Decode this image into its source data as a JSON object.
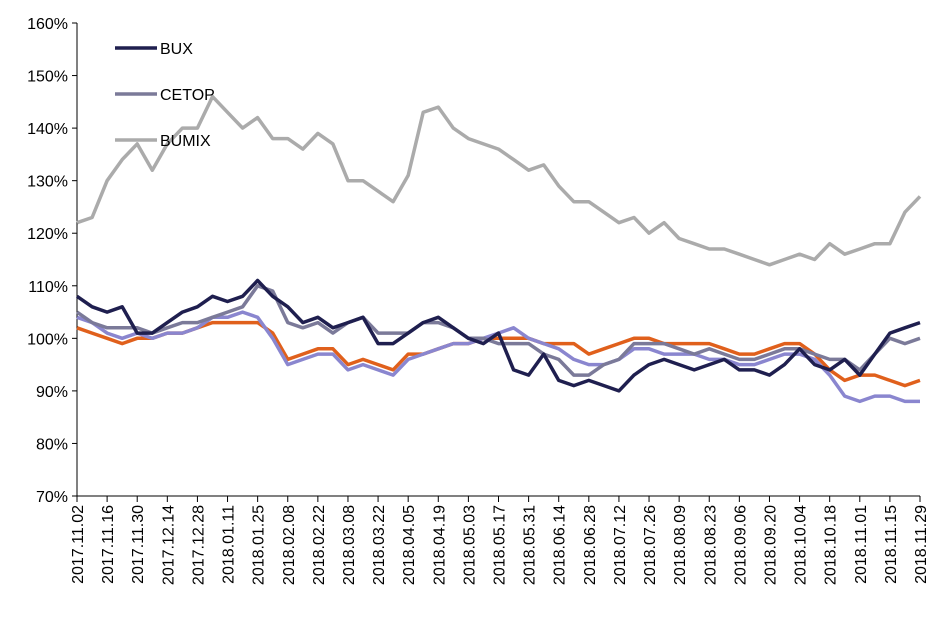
{
  "chart_data": {
    "type": "line",
    "x": [
      "2017.11.02",
      "2017.11.09",
      "2017.11.16",
      "2017.11.23",
      "2017.11.30",
      "2017.12.07",
      "2017.12.14",
      "2017.12.21",
      "2017.12.28",
      "2018.01.04",
      "2018.01.11",
      "2018.01.18",
      "2018.01.25",
      "2018.02.01",
      "2018.02.08",
      "2018.02.15",
      "2018.02.22",
      "2018.03.01",
      "2018.03.08",
      "2018.03.15",
      "2018.03.22",
      "2018.03.29",
      "2018.04.05",
      "2018.04.12",
      "2018.04.19",
      "2018.04.26",
      "2018.05.03",
      "2018.05.10",
      "2018.05.17",
      "2018.05.24",
      "2018.05.31",
      "2018.06.07",
      "2018.06.14",
      "2018.06.21",
      "2018.06.28",
      "2018.07.05",
      "2018.07.12",
      "2018.07.19",
      "2018.07.26",
      "2018.08.02",
      "2018.08.09",
      "2018.08.16",
      "2018.08.23",
      "2018.08.30",
      "2018.09.06",
      "2018.09.13",
      "2018.09.20",
      "2018.09.27",
      "2018.10.04",
      "2018.10.11",
      "2018.10.18",
      "2018.10.25",
      "2018.11.01",
      "2018.11.08",
      "2018.11.15",
      "2018.11.22",
      "2018.11.29"
    ],
    "series": [
      {
        "name": "BUMIX",
        "color": "#ababab",
        "values": [
          122,
          123,
          130,
          134,
          137,
          132,
          137,
          140,
          140,
          146,
          143,
          140,
          142,
          138,
          138,
          136,
          139,
          137,
          130,
          130,
          128,
          126,
          131,
          143,
          144,
          140,
          138,
          137,
          136,
          134,
          132,
          133,
          129,
          126,
          126,
          124,
          122,
          123,
          120,
          122,
          119,
          118,
          117,
          117,
          116,
          115,
          114,
          115,
          116,
          115,
          118,
          116,
          117,
          118,
          118,
          124,
          127
        ]
      },
      {
        "color": "#e0601c",
        "values": [
          102,
          101,
          100,
          99,
          100,
          100,
          101,
          101,
          102,
          103,
          103,
          103,
          103,
          101,
          96,
          97,
          98,
          98,
          95,
          96,
          95,
          94,
          97,
          97,
          98,
          99,
          99,
          100,
          100,
          100,
          100,
          99,
          99,
          99,
          97,
          98,
          99,
          100,
          100,
          99,
          99,
          99,
          99,
          98,
          97,
          97,
          98,
          99,
          99,
          97,
          94,
          92,
          93,
          93,
          92,
          91,
          92
        ]
      },
      {
        "color": "#8a86cf",
        "values": [
          104,
          103,
          101,
          100,
          101,
          100,
          101,
          101,
          102,
          104,
          104,
          105,
          104,
          100,
          95,
          96,
          97,
          97,
          94,
          95,
          94,
          93,
          96,
          97,
          98,
          99,
          99,
          100,
          101,
          102,
          100,
          99,
          98,
          96,
          95,
          95,
          96,
          98,
          98,
          97,
          97,
          97,
          96,
          96,
          95,
          95,
          96,
          97,
          97,
          96,
          93,
          89,
          88,
          89,
          89,
          88,
          88
        ]
      },
      {
        "name": "CETOP",
        "color": "#7b7a99",
        "values": [
          105,
          103,
          102,
          102,
          102,
          101,
          102,
          103,
          103,
          104,
          105,
          106,
          110,
          109,
          103,
          102,
          103,
          101,
          103,
          104,
          101,
          101,
          101,
          103,
          103,
          102,
          100,
          100,
          99,
          99,
          99,
          97,
          96,
          93,
          93,
          95,
          96,
          99,
          99,
          99,
          98,
          97,
          98,
          97,
          96,
          96,
          97,
          98,
          98,
          97,
          96,
          96,
          94,
          97,
          100,
          99,
          100
        ]
      },
      {
        "name": "BUX",
        "color": "#1f1f4f",
        "values": [
          108,
          106,
          105,
          106,
          101,
          101,
          103,
          105,
          106,
          108,
          107,
          108,
          111,
          108,
          106,
          103,
          104,
          102,
          103,
          104,
          99,
          99,
          101,
          103,
          104,
          102,
          100,
          99,
          101,
          94,
          93,
          97,
          92,
          91,
          92,
          91,
          90,
          93,
          95,
          96,
          95,
          94,
          95,
          96,
          94,
          94,
          93,
          95,
          98,
          95,
          94,
          96,
          93,
          97,
          101,
          102,
          103
        ]
      }
    ],
    "legend_order": [
      "BUX",
      "CETOP",
      "BUMIX"
    ],
    "legend": "upper left",
    "ylim": [
      70,
      160
    ],
    "yticks": [
      {
        "value": 70,
        "label": "70%"
      },
      {
        "value": 80,
        "label": "80%"
      },
      {
        "value": 90,
        "label": "90%"
      },
      {
        "value": 100,
        "label": "100%"
      },
      {
        "value": 110,
        "label": "110%"
      },
      {
        "value": 120,
        "label": "120%"
      },
      {
        "value": 130,
        "label": "130%"
      },
      {
        "value": 140,
        "label": "140%"
      },
      {
        "value": 150,
        "label": "150%"
      },
      {
        "value": 160,
        "label": "160%"
      }
    ],
    "xticks": [
      "2017.11.02",
      "2017.11.16",
      "2017.11.30",
      "2017.12.14",
      "2017.12.28",
      "2018.01.11",
      "2018.01.25",
      "2018.02.08",
      "2018.02.22",
      "2018.03.08",
      "2018.03.22",
      "2018.04.05",
      "2018.04.19",
      "2018.05.03",
      "2018.05.17",
      "2018.05.31",
      "2018.06.14",
      "2018.06.28",
      "2018.07.12",
      "2018.07.26",
      "2018.08.09",
      "2018.08.23",
      "2018.09.06",
      "2018.09.20",
      "2018.10.04",
      "2018.10.18",
      "2018.11.01",
      "2018.11.15",
      "2018.11.29"
    ]
  }
}
